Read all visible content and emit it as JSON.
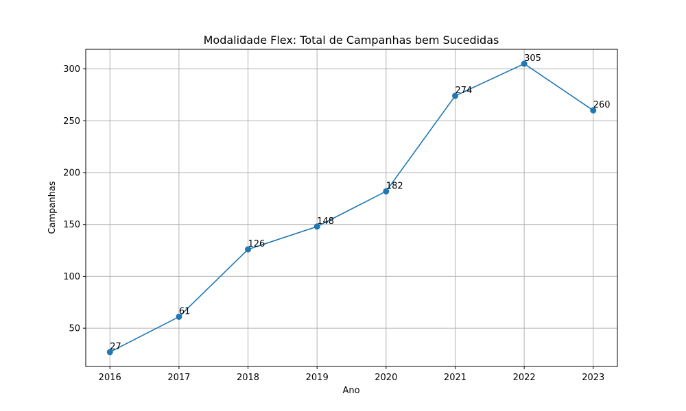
{
  "chart_data": {
    "type": "line",
    "title": "Modalidade Flex: Total de Campanhas bem Sucedidas",
    "xlabel": "Ano",
    "ylabel": "Campanhas",
    "x": [
      2016,
      2017,
      2018,
      2019,
      2020,
      2021,
      2022,
      2023
    ],
    "x_tick_labels": [
      "2016",
      "2017",
      "2018",
      "2019",
      "2020",
      "2021",
      "2022",
      "2023"
    ],
    "series": [
      {
        "values": [
          27,
          61,
          126,
          148,
          182,
          274,
          305,
          260
        ],
        "data_labels": [
          "27",
          "61",
          "126",
          "148",
          "182",
          "274",
          "305",
          "260"
        ],
        "color": "#1f77b4",
        "marker": "circle"
      }
    ],
    "xlim": [
      2015.65,
      2023.35
    ],
    "ylim": [
      13.1,
      318.9
    ],
    "y_ticks": [
      50,
      100,
      150,
      200,
      250,
      300
    ],
    "y_tick_labels": [
      "50",
      "100",
      "150",
      "200",
      "250",
      "300"
    ],
    "grid": true,
    "legend": "none"
  }
}
